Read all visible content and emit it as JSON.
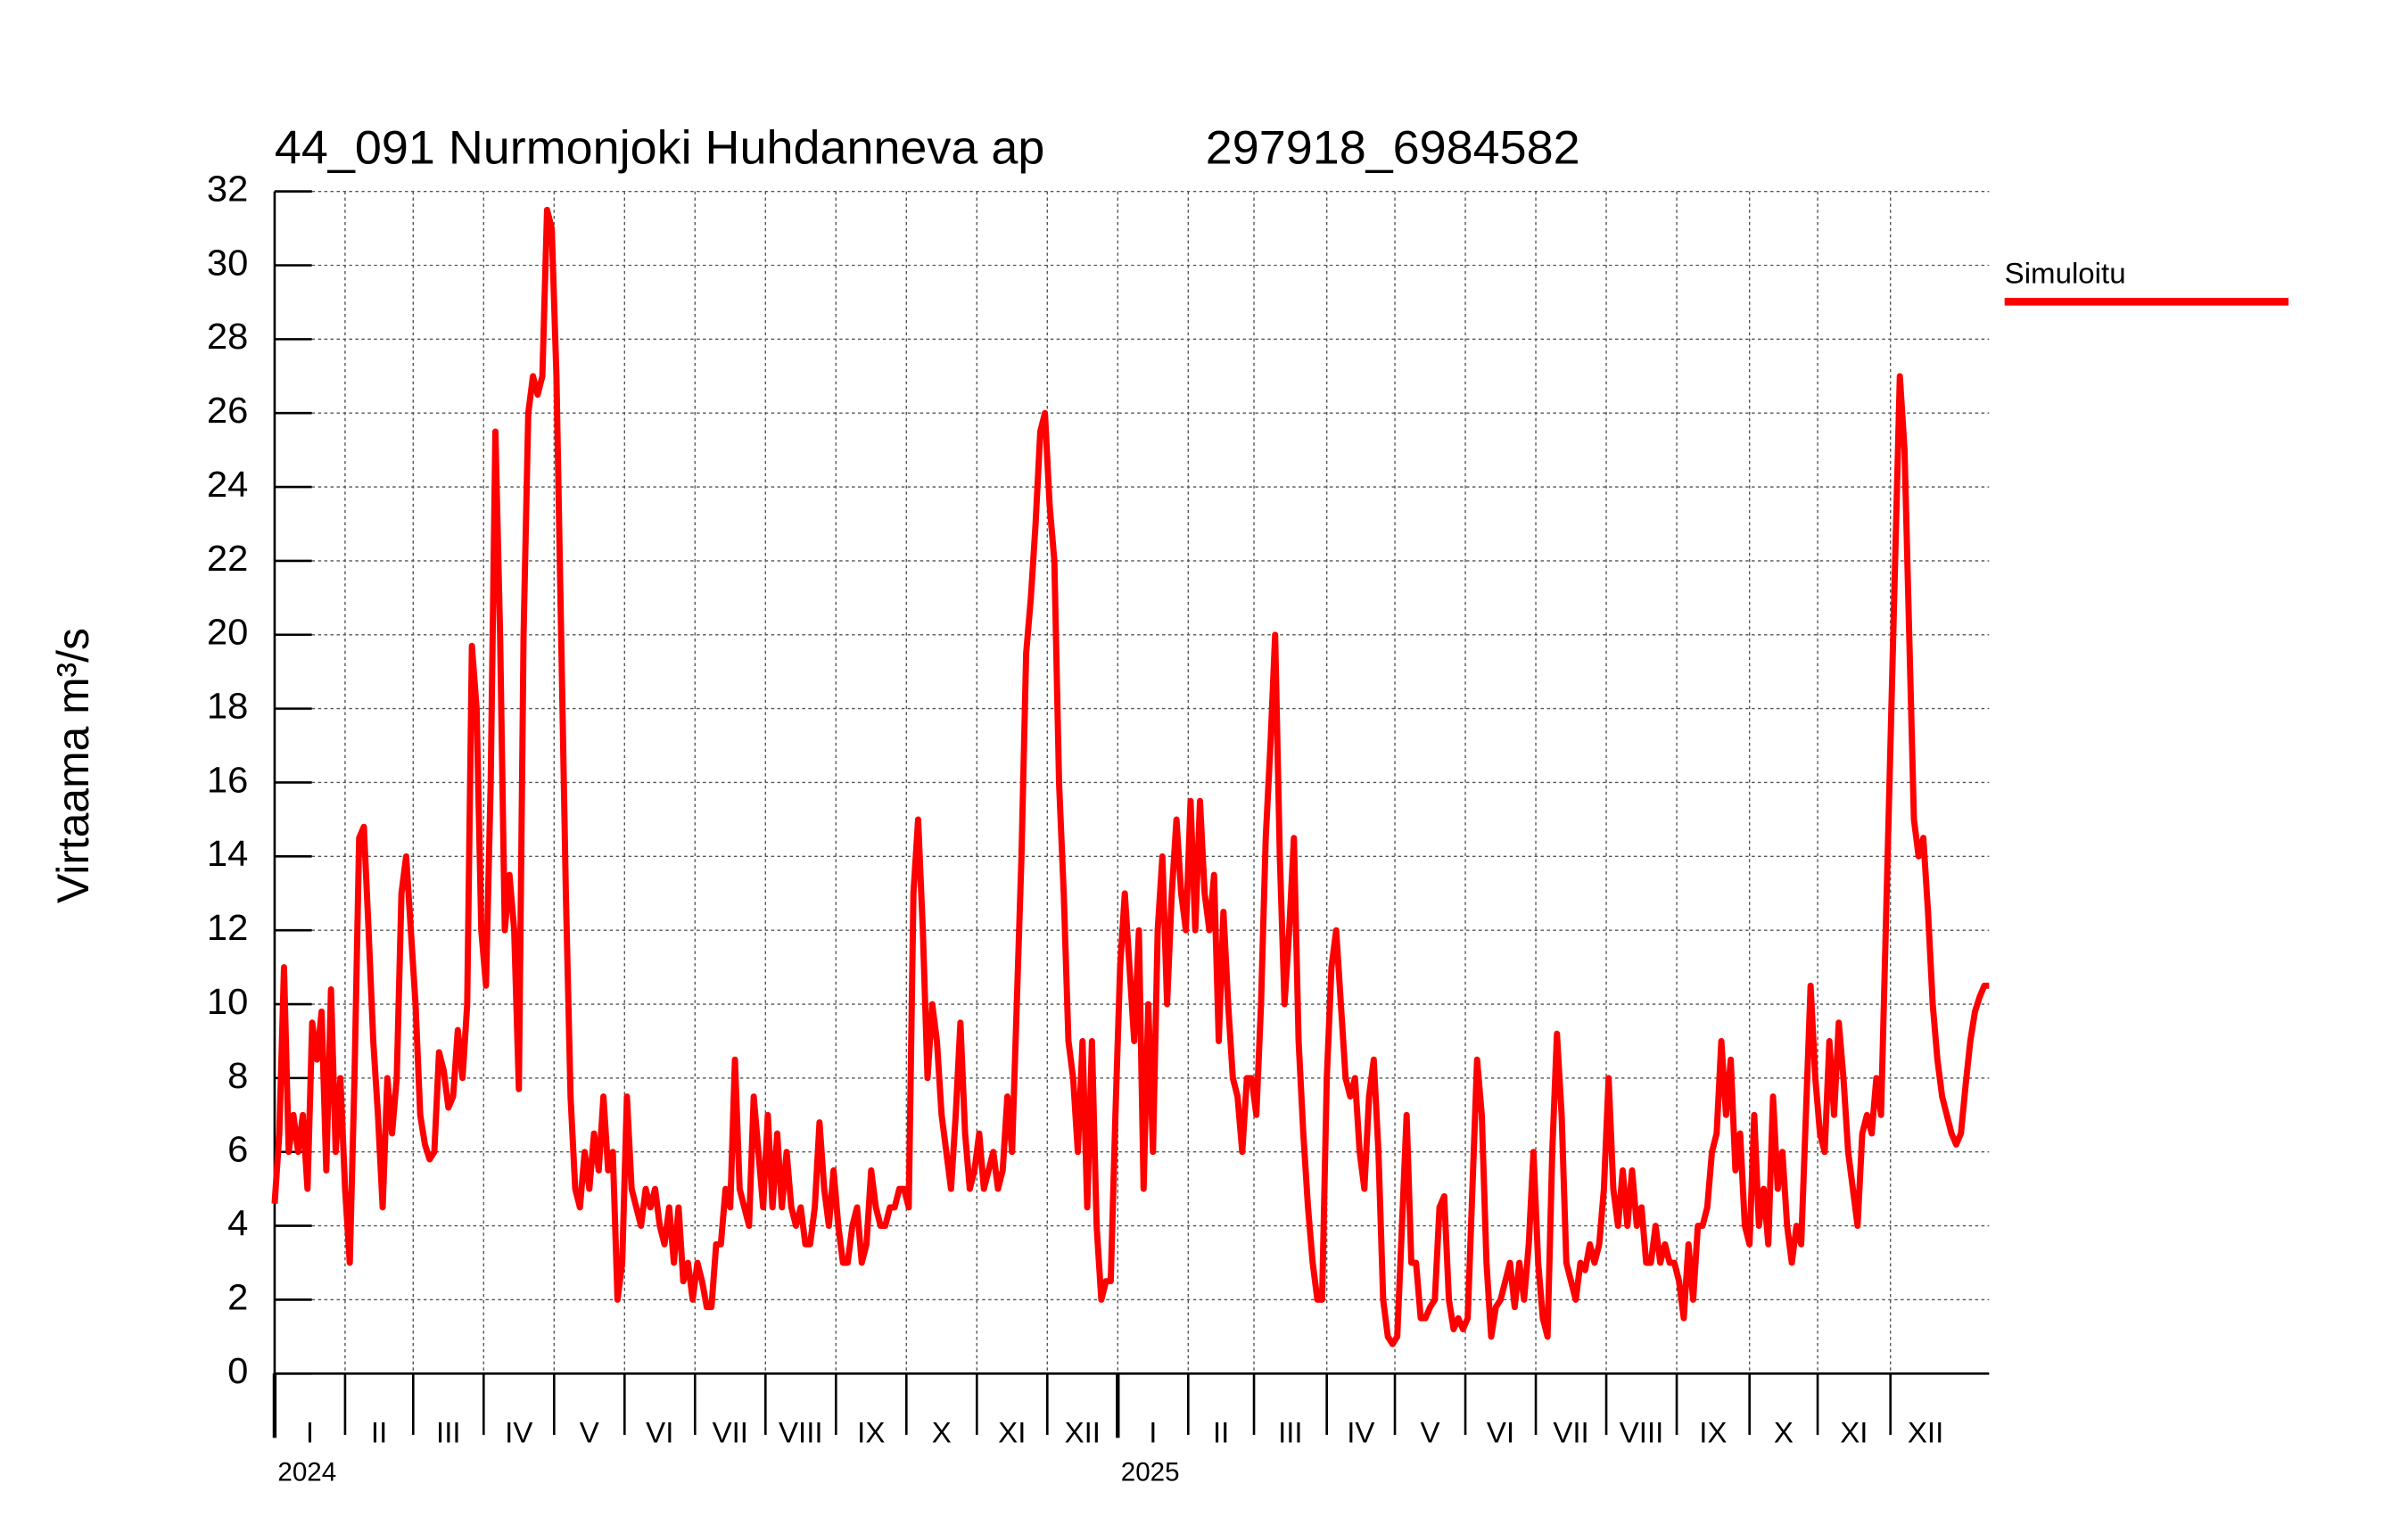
{
  "chart_data": {
    "type": "line",
    "title": "44_091 Nurmonjoki Huhdanneva ap",
    "subtitle": "297918_6984582",
    "y_label": "Virtaama m³/s",
    "grid": true,
    "legend": "right",
    "xlim": [
      0,
      730
    ],
    "ylim": [
      0,
      32
    ],
    "yticks": [
      0,
      2,
      4,
      6,
      8,
      10,
      12,
      14,
      16,
      18,
      20,
      22,
      24,
      26,
      28,
      30,
      32
    ],
    "xticks": [
      {
        "value": 0,
        "label": "I"
      },
      {
        "value": 30,
        "label": "II"
      },
      {
        "value": 59,
        "label": "III"
      },
      {
        "value": 89,
        "label": "IV"
      },
      {
        "value": 119,
        "label": "V"
      },
      {
        "value": 149,
        "label": "VI"
      },
      {
        "value": 179,
        "label": "VII"
      },
      {
        "value": 209,
        "label": "VIII"
      },
      {
        "value": 239,
        "label": "IX"
      },
      {
        "value": 269,
        "label": "X"
      },
      {
        "value": 299,
        "label": "XI"
      },
      {
        "value": 329,
        "label": "XII"
      },
      {
        "value": 359,
        "label": "I"
      },
      {
        "value": 389,
        "label": "II"
      },
      {
        "value": 417,
        "label": "III"
      },
      {
        "value": 448,
        "label": "IV"
      },
      {
        "value": 477,
        "label": "V"
      },
      {
        "value": 507,
        "label": "VI"
      },
      {
        "value": 537,
        "label": "VII"
      },
      {
        "value": 567,
        "label": "VIII"
      },
      {
        "value": 597,
        "label": "IX"
      },
      {
        "value": 628,
        "label": "X"
      },
      {
        "value": 657,
        "label": "XI"
      },
      {
        "value": 688,
        "label": "XII"
      }
    ],
    "year_ticks": [
      {
        "value": 0,
        "label": "2024"
      },
      {
        "value": 359,
        "label": "2025"
      }
    ],
    "x": [
      0,
      2,
      4,
      6,
      8,
      10,
      12,
      14,
      16,
      18,
      20,
      22,
      24,
      26,
      28,
      30,
      32,
      34,
      36,
      38,
      40,
      42,
      44,
      46,
      48,
      50,
      52,
      54,
      56,
      58,
      60,
      62,
      64,
      66,
      68,
      70,
      72,
      74,
      76,
      78,
      80,
      82,
      84,
      86,
      88,
      90,
      92,
      94,
      96,
      98,
      100,
      102,
      104,
      106,
      108,
      110,
      112,
      114,
      116,
      118,
      120,
      122,
      124,
      126,
      128,
      130,
      132,
      134,
      136,
      138,
      140,
      142,
      144,
      146,
      148,
      150,
      152,
      154,
      156,
      158,
      160,
      162,
      164,
      166,
      168,
      170,
      172,
      174,
      176,
      178,
      180,
      182,
      184,
      186,
      188,
      190,
      192,
      194,
      196,
      198,
      200,
      202,
      204,
      206,
      208,
      210,
      212,
      214,
      216,
      218,
      220,
      222,
      224,
      226,
      228,
      230,
      232,
      234,
      236,
      238,
      240,
      242,
      244,
      246,
      248,
      250,
      252,
      254,
      256,
      258,
      260,
      262,
      264,
      266,
      268,
      270,
      272,
      274,
      276,
      278,
      280,
      282,
      284,
      286,
      288,
      290,
      292,
      294,
      296,
      298,
      300,
      302,
      304,
      306,
      308,
      310,
      312,
      314,
      316,
      318,
      320,
      322,
      324,
      326,
      328,
      330,
      332,
      334,
      336,
      338,
      340,
      342,
      344,
      346,
      348,
      350,
      352,
      354,
      356,
      358,
      360,
      362,
      364,
      366,
      368,
      370,
      372,
      374,
      376,
      378,
      380,
      382,
      384,
      386,
      388,
      390,
      392,
      394,
      396,
      398,
      400,
      402,
      404,
      406,
      408,
      410,
      412,
      414,
      416,
      418,
      420,
      422,
      424,
      426,
      428,
      430,
      432,
      434,
      436,
      438,
      440,
      442,
      444,
      446,
      448,
      450,
      452,
      454,
      456,
      458,
      460,
      462,
      464,
      466,
      468,
      470,
      472,
      474,
      476,
      478,
      480,
      482,
      484,
      486,
      488,
      490,
      492,
      494,
      496,
      498,
      500,
      502,
      504,
      506,
      508,
      510,
      512,
      514,
      516,
      518,
      520,
      522,
      524,
      526,
      528,
      530,
      532,
      534,
      536,
      538,
      540,
      542,
      544,
      546,
      548,
      550,
      552,
      554,
      556,
      558,
      560,
      562,
      564,
      566,
      568,
      570,
      572,
      574,
      576,
      578,
      580,
      582,
      584,
      586,
      588,
      590,
      592,
      594,
      596,
      598,
      600,
      602,
      604,
      606,
      608,
      610,
      612,
      614,
      616,
      618,
      620,
      622,
      624,
      626,
      628,
      630,
      632,
      634,
      636,
      638,
      640,
      642,
      644,
      646,
      648,
      650,
      652,
      654,
      656,
      658,
      660,
      662,
      664,
      666,
      668,
      670,
      672,
      674,
      676,
      678,
      680,
      682,
      684,
      686,
      688,
      690,
      692,
      694,
      696,
      698,
      700,
      702,
      704,
      706,
      708,
      710,
      712,
      714,
      716,
      718,
      720,
      722,
      724,
      726,
      728,
      730
    ],
    "series": [
      {
        "name": "Simuloitu",
        "color": "#ff0000",
        "values": [
          4.6,
          6.5,
          11,
          6,
          7,
          6,
          7,
          5,
          9.5,
          8.5,
          9.8,
          5.5,
          10.4,
          6,
          8,
          5,
          3,
          8,
          14.5,
          14.8,
          12,
          9,
          7,
          4.5,
          8,
          6.5,
          8,
          13,
          14,
          12,
          10,
          7,
          6.2,
          5.8,
          6,
          8.7,
          8.2,
          7.2,
          7.5,
          9.3,
          8,
          10,
          19.7,
          18,
          12,
          10.5,
          16,
          25.5,
          20,
          12,
          13.5,
          12,
          7.7,
          20,
          26,
          27,
          26.5,
          27,
          31.5,
          31,
          27,
          20,
          13,
          7.5,
          5,
          4.5,
          6,
          5,
          6.5,
          5.5,
          7.5,
          5.5,
          6,
          2,
          3,
          7.5,
          5,
          4.5,
          4,
          5,
          4.5,
          5,
          4,
          3.5,
          4.5,
          3,
          4.5,
          2.5,
          3,
          2,
          3,
          2.5,
          1.8,
          1.8,
          3.5,
          3.5,
          5,
          4.5,
          8.5,
          5,
          4.5,
          4,
          7.5,
          6,
          4.5,
          7,
          4.5,
          6.5,
          4.5,
          6,
          4.5,
          4,
          4.5,
          3.5,
          3.5,
          4.5,
          6.8,
          5,
          4,
          5.5,
          4,
          3,
          3,
          4,
          4.5,
          3,
          3.5,
          5.5,
          4.5,
          4,
          4,
          4.5,
          4.5,
          5,
          5,
          4.5,
          13,
          15,
          12,
          8,
          10,
          9,
          7,
          6,
          5,
          7,
          9.5,
          6.5,
          5,
          5.5,
          6.5,
          5,
          5.5,
          6,
          5,
          5.5,
          7.5,
          6,
          10,
          14,
          19.5,
          21,
          23,
          25.5,
          26,
          23.5,
          22,
          16,
          13,
          9,
          8,
          6,
          9,
          4.5,
          9,
          4,
          2,
          2.5,
          2.5,
          7,
          11,
          13,
          11,
          9,
          12,
          5,
          10,
          6,
          12,
          14,
          10,
          13,
          15,
          13,
          12,
          15.5,
          12,
          15.5,
          13,
          12,
          13.5,
          9,
          12.5,
          10,
          8,
          7.5,
          6,
          8,
          8,
          7,
          10,
          14.5,
          17,
          20,
          14,
          10,
          12,
          14.5,
          9,
          6.5,
          4.5,
          3,
          2,
          2,
          8,
          11,
          12,
          10,
          8,
          7.5,
          8,
          6,
          5,
          7.5,
          8.5,
          6,
          2,
          1,
          0.8,
          1,
          4,
          7,
          3,
          3,
          1.5,
          1.5,
          1.8,
          2,
          4.5,
          4.8,
          2,
          1.2,
          1.5,
          1.2,
          1.5,
          5,
          8.5,
          7,
          3,
          1,
          1.8,
          2,
          2.5,
          3,
          1.8,
          3,
          2,
          3.5,
          6,
          3,
          1.5,
          1,
          6,
          9.2,
          7,
          3,
          2.5,
          2,
          3,
          2.8,
          3.5,
          3,
          3.5,
          5,
          8,
          5,
          4,
          5.5,
          4,
          5.5,
          4,
          4.5,
          3,
          3,
          4,
          3,
          3.5,
          3,
          3,
          2.5,
          1.5,
          3.5,
          2,
          4,
          4,
          4.5,
          6,
          6.5,
          9,
          7,
          8.5,
          5.5,
          6.5,
          4,
          3.5,
          7,
          4,
          5,
          3.5,
          7.5,
          5,
          6,
          4,
          3,
          4,
          3.5,
          7,
          10.5,
          8,
          6.5,
          6,
          9,
          7,
          9.5,
          8,
          6,
          5,
          4,
          6.5,
          7,
          6.5,
          8,
          7,
          12,
          17,
          22,
          27,
          25,
          20,
          15,
          14,
          14.5,
          12.5,
          10,
          8.5,
          7.5,
          7,
          6.5,
          6.2,
          6.5,
          7.8,
          9,
          9.8,
          10.2,
          10.5,
          10.5
        ]
      }
    ]
  }
}
